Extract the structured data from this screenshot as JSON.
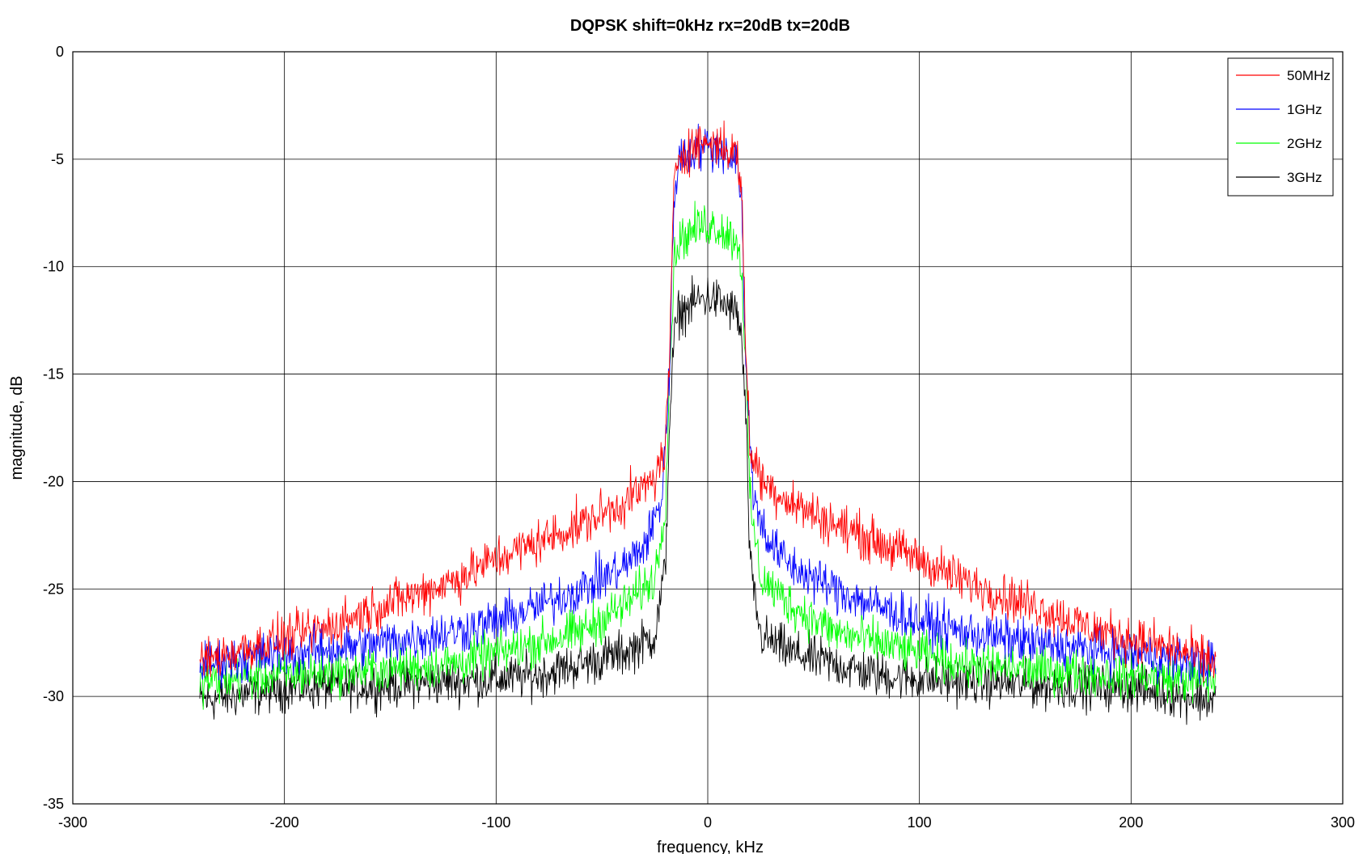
{
  "chart_data": {
    "type": "line",
    "title": "DQPSK shift=0kHz rx=20dB tx=20dB",
    "xlabel": "frequency, kHz",
    "ylabel": "magnitude, dB",
    "xlim": [
      -300,
      300
    ],
    "ylim": [
      -35,
      0
    ],
    "xticks": [
      -300,
      -200,
      -100,
      0,
      100,
      200,
      300
    ],
    "yticks": [
      0,
      -5,
      -10,
      -15,
      -20,
      -25,
      -30,
      -35
    ],
    "grid": true,
    "legend_position": "top-right",
    "x_range_data": [
      -240,
      240
    ],
    "series": [
      {
        "name": "50MHz",
        "color": "#ff0000",
        "noise_db": 0.8,
        "points": [
          [
            -240,
            -28.4
          ],
          [
            -220,
            -27.8
          ],
          [
            -200,
            -27.3
          ],
          [
            -180,
            -26.8
          ],
          [
            -160,
            -26.0
          ],
          [
            -140,
            -25.3
          ],
          [
            -120,
            -24.6
          ],
          [
            -100,
            -23.6
          ],
          [
            -80,
            -22.8
          ],
          [
            -60,
            -22.0
          ],
          [
            -40,
            -21.0
          ],
          [
            -30,
            -20.3
          ],
          [
            -25,
            -19.8
          ],
          [
            -20,
            -18.5
          ],
          [
            -18,
            -14.0
          ],
          [
            -16,
            -6.5
          ],
          [
            -14,
            -4.8
          ],
          [
            -5,
            -4.3
          ],
          [
            0,
            -4.2
          ],
          [
            5,
            -4.3
          ],
          [
            14,
            -4.8
          ],
          [
            16,
            -6.5
          ],
          [
            18,
            -14.0
          ],
          [
            20,
            -18.5
          ],
          [
            25,
            -19.8
          ],
          [
            30,
            -20.3
          ],
          [
            40,
            -21.0
          ],
          [
            60,
            -22.0
          ],
          [
            80,
            -22.8
          ],
          [
            100,
            -23.6
          ],
          [
            120,
            -24.6
          ],
          [
            140,
            -25.3
          ],
          [
            160,
            -26.0
          ],
          [
            180,
            -26.8
          ],
          [
            200,
            -27.3
          ],
          [
            220,
            -27.8
          ],
          [
            240,
            -28.4
          ]
        ]
      },
      {
        "name": "1GHz",
        "color": "#0000ff",
        "noise_db": 0.8,
        "points": [
          [
            -240,
            -28.5
          ],
          [
            -200,
            -28.0
          ],
          [
            -160,
            -27.6
          ],
          [
            -120,
            -27.0
          ],
          [
            -100,
            -26.5
          ],
          [
            -80,
            -25.8
          ],
          [
            -60,
            -25.0
          ],
          [
            -40,
            -24.0
          ],
          [
            -30,
            -23.0
          ],
          [
            -22,
            -21.0
          ],
          [
            -18,
            -15.0
          ],
          [
            -16,
            -7.0
          ],
          [
            -14,
            -5.0
          ],
          [
            -5,
            -4.5
          ],
          [
            0,
            -4.4
          ],
          [
            5,
            -4.5
          ],
          [
            14,
            -5.0
          ],
          [
            16,
            -7.0
          ],
          [
            18,
            -15.0
          ],
          [
            22,
            -21.0
          ],
          [
            30,
            -23.0
          ],
          [
            40,
            -24.0
          ],
          [
            60,
            -25.0
          ],
          [
            80,
            -25.8
          ],
          [
            100,
            -26.5
          ],
          [
            120,
            -27.0
          ],
          [
            160,
            -27.6
          ],
          [
            200,
            -28.0
          ],
          [
            240,
            -28.5
          ]
        ]
      },
      {
        "name": "2GHz",
        "color": "#00ff00",
        "noise_db": 0.8,
        "points": [
          [
            -240,
            -29.3
          ],
          [
            -200,
            -29.0
          ],
          [
            -160,
            -28.8
          ],
          [
            -120,
            -28.5
          ],
          [
            -100,
            -28.0
          ],
          [
            -80,
            -27.5
          ],
          [
            -60,
            -27.0
          ],
          [
            -40,
            -25.8
          ],
          [
            -25,
            -24.5
          ],
          [
            -20,
            -21.0
          ],
          [
            -18,
            -15.0
          ],
          [
            -16,
            -10.0
          ],
          [
            -14,
            -8.8
          ],
          [
            -5,
            -8.2
          ],
          [
            0,
            -8.0
          ],
          [
            5,
            -8.2
          ],
          [
            14,
            -8.8
          ],
          [
            16,
            -10.0
          ],
          [
            18,
            -15.0
          ],
          [
            20,
            -21.0
          ],
          [
            25,
            -24.5
          ],
          [
            40,
            -25.8
          ],
          [
            60,
            -27.0
          ],
          [
            80,
            -27.5
          ],
          [
            100,
            -28.0
          ],
          [
            120,
            -28.5
          ],
          [
            160,
            -28.8
          ],
          [
            200,
            -29.0
          ],
          [
            240,
            -29.3
          ]
        ]
      },
      {
        "name": "3GHz",
        "color": "#000000",
        "noise_db": 0.8,
        "points": [
          [
            -240,
            -30.2
          ],
          [
            -200,
            -29.6
          ],
          [
            -160,
            -29.5
          ],
          [
            -120,
            -29.3
          ],
          [
            -100,
            -29.2
          ],
          [
            -80,
            -29.0
          ],
          [
            -60,
            -28.5
          ],
          [
            -40,
            -28.0
          ],
          [
            -25,
            -27.2
          ],
          [
            -20,
            -24.0
          ],
          [
            -18,
            -17.0
          ],
          [
            -16,
            -13.5
          ],
          [
            -14,
            -12.2
          ],
          [
            -5,
            -11.6
          ],
          [
            0,
            -11.4
          ],
          [
            5,
            -11.6
          ],
          [
            14,
            -12.2
          ],
          [
            16,
            -13.5
          ],
          [
            18,
            -17.0
          ],
          [
            20,
            -24.0
          ],
          [
            25,
            -27.2
          ],
          [
            40,
            -28.0
          ],
          [
            60,
            -28.5
          ],
          [
            80,
            -29.0
          ],
          [
            100,
            -29.2
          ],
          [
            120,
            -29.3
          ],
          [
            160,
            -29.5
          ],
          [
            200,
            -29.6
          ],
          [
            240,
            -30.2
          ]
        ]
      }
    ]
  }
}
